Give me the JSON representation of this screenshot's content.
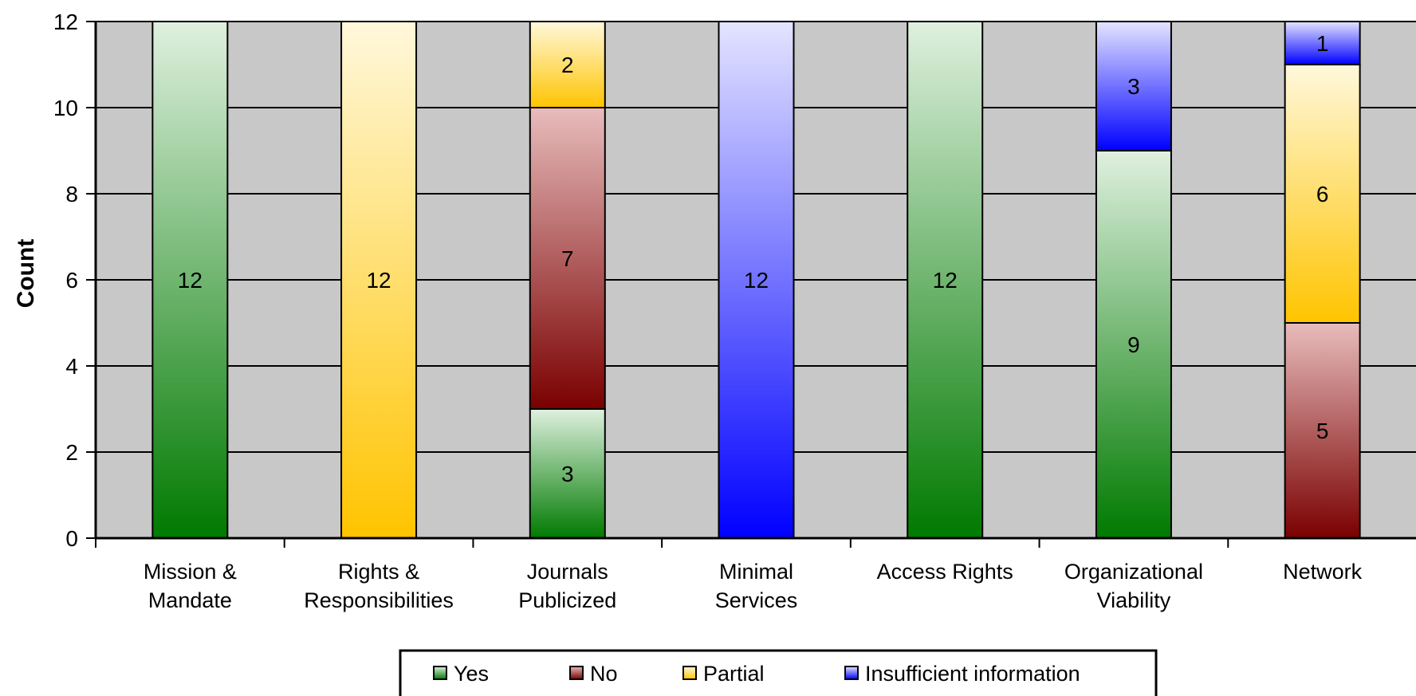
{
  "chart_data": {
    "type": "bar",
    "stacked": true,
    "ylabel": "Count",
    "xlabel": "",
    "ylim": [
      0,
      12
    ],
    "yticks": [
      0,
      2,
      4,
      6,
      8,
      10,
      12
    ],
    "grid": true,
    "legend_position": "bottom",
    "categories": [
      [
        "Mission &",
        "Mandate"
      ],
      [
        "Rights &",
        "Responsibilities"
      ],
      [
        "Journals",
        "Publicized"
      ],
      [
        "Minimal",
        "Services"
      ],
      [
        "Access Rights"
      ],
      [
        "Organizational",
        "Viability"
      ],
      [
        "Network"
      ]
    ],
    "series": [
      {
        "name": "Yes",
        "color_light": "#dff0df",
        "color_dark": "#007a00",
        "values": [
          12,
          0,
          3,
          0,
          12,
          9,
          0
        ]
      },
      {
        "name": "No",
        "color_light": "#e8bcbc",
        "color_dark": "#7a0000",
        "values": [
          0,
          0,
          7,
          0,
          0,
          0,
          5
        ]
      },
      {
        "name": "Partial",
        "color_light": "#fff8dc",
        "color_dark": "#ffc400",
        "values": [
          0,
          12,
          2,
          0,
          0,
          0,
          6
        ]
      },
      {
        "name": "Insufficient information",
        "color_light": "#e4e4ff",
        "color_dark": "#0000ff",
        "values": [
          0,
          0,
          0,
          12,
          0,
          3,
          1
        ]
      }
    ]
  }
}
